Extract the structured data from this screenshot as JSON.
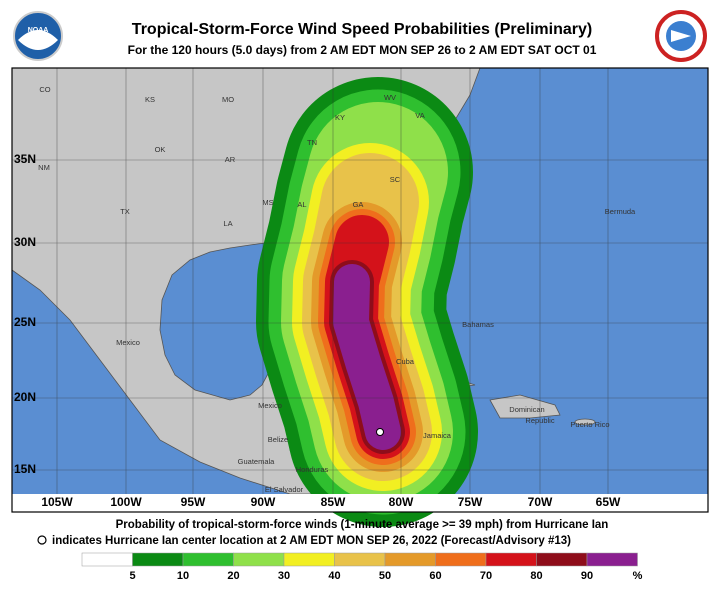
{
  "header": {
    "title": "Tropical-Storm-Force Wind Speed Probabilities (Preliminary)",
    "subtitle": "For the 120 hours (5.0 days) from 2 AM EDT MON SEP 26 to 2 AM EDT SAT OCT 01",
    "logo": "NOAA"
  },
  "map": {
    "lat_labels": [
      "35N",
      "30N",
      "25N",
      "20N",
      "15N"
    ],
    "lon_labels": [
      "105W",
      "100W",
      "95W",
      "90W",
      "85W",
      "80W",
      "75W",
      "70W",
      "65W"
    ],
    "places": [
      "CO",
      "KS",
      "MO",
      "KY",
      "WV",
      "VA",
      "TN",
      "OK",
      "AR",
      "NM",
      "TX",
      "LA",
      "MS",
      "AL",
      "GA",
      "SC",
      "Bermuda",
      "Bahamas",
      "Mexico",
      "Cuba",
      "Mexico",
      "Belize",
      "Guatemala",
      "Honduras",
      "El Salvador",
      "Jamaica",
      "Dominican",
      "Republic",
      "Puerto Rico"
    ]
  },
  "footer": {
    "line1": "Probability of tropical-storm-force winds (1-minute average >= 39 mph) from Hurricane Ian",
    "line2": "indicates Hurricane Ian center location at 2 AM EDT MON SEP 26, 2022 (Forecast/Advisory #13)"
  },
  "legend": {
    "ticks": [
      5,
      10,
      20,
      30,
      40,
      50,
      60,
      70,
      80,
      90
    ],
    "unit": "%",
    "colors": [
      "#ffffff",
      "#0b8a14",
      "#2fbf2f",
      "#8fe04a",
      "#f2ef22",
      "#e8c24a",
      "#e49a2a",
      "#ef6e1c",
      "#d4121a",
      "#8e0d1a",
      "#8a1f8f"
    ]
  }
}
